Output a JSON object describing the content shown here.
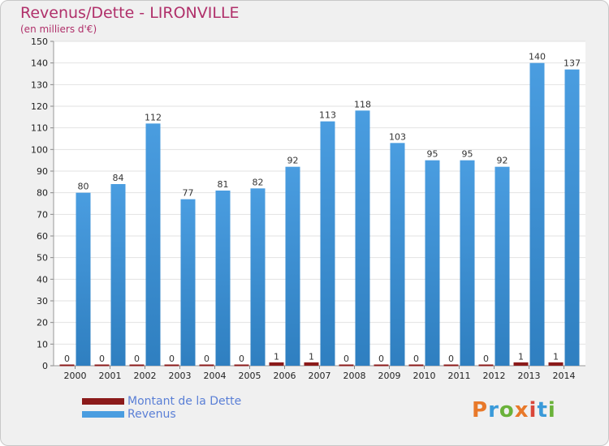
{
  "header": {
    "title": "Revenus/Dette - LIRONVILLE",
    "subtitle": "(en milliers d'€)"
  },
  "legend": {
    "debt_label": "Montant de la Dette",
    "revenue_label": "Revenus"
  },
  "logo": {
    "text": "Proxiti"
  },
  "colors": {
    "debt": "#8b1a1a",
    "revenue": "#4a9de0",
    "title": "#b0306a",
    "legend_text": "#5a7fd6"
  },
  "chart_data": {
    "type": "bar",
    "categories": [
      "2000",
      "2001",
      "2002",
      "2003",
      "2004",
      "2005",
      "2006",
      "2007",
      "2008",
      "2009",
      "2010",
      "2011",
      "2012",
      "2013",
      "2014"
    ],
    "series": [
      {
        "name": "Montant de la Dette",
        "values": [
          0,
          0,
          0,
          0,
          0,
          0,
          1,
          1,
          0,
          0,
          0,
          0,
          0,
          1,
          1
        ]
      },
      {
        "name": "Revenus",
        "values": [
          80,
          84,
          112,
          77,
          81,
          82,
          92,
          113,
          118,
          103,
          95,
          95,
          92,
          140,
          137
        ]
      }
    ],
    "ylim": [
      0,
      150
    ],
    "yticks": [
      0,
      10,
      20,
      30,
      40,
      50,
      60,
      70,
      80,
      90,
      100,
      110,
      120,
      130,
      140,
      150
    ],
    "grid": true,
    "legend_position": "bottom-left"
  }
}
